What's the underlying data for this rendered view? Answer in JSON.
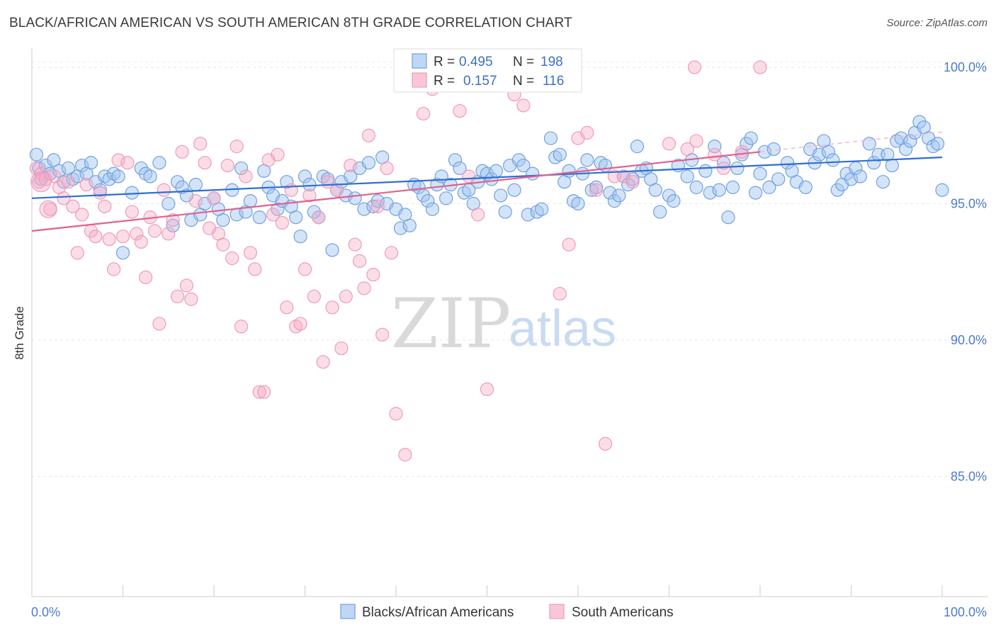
{
  "title": "BLACK/AFRICAN AMERICAN VS SOUTH AMERICAN 8TH GRADE CORRELATION CHART",
  "source": "Source: ZipAtlas.com",
  "watermark": {
    "zip": "ZIP",
    "atlas": "atlas"
  },
  "chart_data": {
    "type": "scatter",
    "ylabel": "8th Grade",
    "x_tick_labels": [
      "0.0%",
      "100.0%"
    ],
    "y_tick_labels": [
      {
        "value": 100,
        "label": "100.0%"
      },
      {
        "value": 95,
        "label": "95.0%"
      },
      {
        "value": 90,
        "label": "90.0%"
      },
      {
        "value": 85,
        "label": "85.0%"
      }
    ],
    "xlim": [
      0,
      100
    ],
    "ylim": [
      80.6,
      100.7
    ],
    "grid": true,
    "legend_position": "bottom-center",
    "stats_box": [
      {
        "r_label": "R =",
        "r_value": "0.495",
        "n_label": "N =",
        "n_value": "198"
      },
      {
        "r_label": "R =",
        "r_value": "0.157",
        "n_label": "N =",
        "n_value": "116"
      }
    ],
    "series": [
      {
        "name": "Blacks/African Americans",
        "color": "#6fa0e0",
        "line_color": "#2f6fd0",
        "trend": {
          "x0": 0,
          "y0": 95.2,
          "x1": 100,
          "y1": 96.7
        },
        "points": [
          [
            0.5,
            96.8
          ],
          [
            0.8,
            96.3
          ],
          [
            1,
            95.9
          ],
          [
            1.5,
            96.4
          ],
          [
            2,
            96.1
          ],
          [
            2.4,
            96.6
          ],
          [
            3,
            96.2
          ],
          [
            3.5,
            95.8
          ],
          [
            4,
            96.3
          ],
          [
            4.5,
            95.9
          ],
          [
            5,
            96.0
          ],
          [
            5.5,
            96.4
          ],
          [
            6,
            96.1
          ],
          [
            6.5,
            96.5
          ],
          [
            7,
            95.8
          ],
          [
            7.5,
            95.5
          ],
          [
            8,
            96.0
          ],
          [
            8.5,
            95.9
          ],
          [
            9,
            96.1
          ],
          [
            9.5,
            96.0
          ],
          [
            10,
            93.2
          ],
          [
            11,
            95.4
          ],
          [
            12,
            96.3
          ],
          [
            12.5,
            96.1
          ],
          [
            13,
            96.0
          ],
          [
            14,
            96.5
          ],
          [
            15,
            95.0
          ],
          [
            15.5,
            94.2
          ],
          [
            16,
            95.8
          ],
          [
            16.5,
            95.6
          ],
          [
            17,
            95.3
          ],
          [
            17.5,
            94.4
          ],
          [
            18,
            95.7
          ],
          [
            18.5,
            94.6
          ],
          [
            19,
            95.0
          ],
          [
            20,
            95.2
          ],
          [
            20.5,
            94.8
          ],
          [
            21,
            94.4
          ],
          [
            22,
            95.5
          ],
          [
            22.5,
            94.6
          ],
          [
            23,
            96.3
          ],
          [
            23.5,
            94.7
          ],
          [
            24,
            95.1
          ],
          [
            25,
            94.5
          ],
          [
            25.5,
            96.2
          ],
          [
            26,
            95.6
          ],
          [
            26.5,
            95.3
          ],
          [
            27,
            94.8
          ],
          [
            27.5,
            95.1
          ],
          [
            28,
            95.8
          ],
          [
            28.5,
            94.9
          ],
          [
            29,
            94.5
          ],
          [
            29.5,
            93.8
          ],
          [
            30,
            96.0
          ],
          [
            30.5,
            95.7
          ],
          [
            31,
            94.7
          ],
          [
            31.5,
            94.5
          ],
          [
            32,
            96.0
          ],
          [
            32.5,
            95.9
          ],
          [
            33,
            93.3
          ],
          [
            33.5,
            95.5
          ],
          [
            34,
            95.8
          ],
          [
            34.5,
            95.3
          ],
          [
            35,
            96.0
          ],
          [
            35.5,
            95.2
          ],
          [
            36,
            96.3
          ],
          [
            36.5,
            94.8
          ],
          [
            37,
            96.5
          ],
          [
            37.5,
            94.9
          ],
          [
            38,
            95.1
          ],
          [
            38.5,
            96.7
          ],
          [
            39,
            95.0
          ],
          [
            40,
            94.8
          ],
          [
            40.5,
            94.1
          ],
          [
            41,
            94.6
          ],
          [
            41.5,
            94.2
          ],
          [
            42,
            95.7
          ],
          [
            42.5,
            95.6
          ],
          [
            43,
            95.3
          ],
          [
            43.5,
            95.1
          ],
          [
            44,
            94.8
          ],
          [
            44.5,
            95.7
          ],
          [
            45,
            96.0
          ],
          [
            45.5,
            95.2
          ],
          [
            46,
            95.7
          ],
          [
            46.5,
            96.6
          ],
          [
            47,
            96.3
          ],
          [
            47.5,
            95.4
          ],
          [
            48,
            95.5
          ],
          [
            48.5,
            95.0
          ],
          [
            49,
            95.8
          ],
          [
            49.5,
            96.2
          ],
          [
            50,
            96.1
          ],
          [
            50.5,
            95.9
          ],
          [
            51,
            96.2
          ],
          [
            51.5,
            95.3
          ],
          [
            52,
            94.7
          ],
          [
            52.5,
            96.4
          ],
          [
            53,
            95.5
          ],
          [
            53.5,
            96.6
          ],
          [
            54,
            96.4
          ],
          [
            54.5,
            94.6
          ],
          [
            55,
            96.1
          ],
          [
            55.5,
            94.7
          ],
          [
            56,
            94.8
          ],
          [
            57,
            97.4
          ],
          [
            57.5,
            96.7
          ],
          [
            58,
            96.8
          ],
          [
            58.5,
            95.8
          ],
          [
            59,
            96.2
          ],
          [
            59.5,
            95.1
          ],
          [
            60,
            95.0
          ],
          [
            60.5,
            96.1
          ],
          [
            61,
            96.6
          ],
          [
            61.5,
            95.5
          ],
          [
            62,
            95.6
          ],
          [
            62.5,
            96.5
          ],
          [
            63,
            96.4
          ],
          [
            63.5,
            95.4
          ],
          [
            64,
            95.1
          ],
          [
            64.5,
            95.3
          ],
          [
            65,
            96.0
          ],
          [
            65.5,
            95.7
          ],
          [
            66,
            95.9
          ],
          [
            66.5,
            97.1
          ],
          [
            67,
            96.2
          ],
          [
            67.5,
            96.3
          ],
          [
            68,
            95.9
          ],
          [
            68.5,
            95.5
          ],
          [
            69,
            94.7
          ],
          [
            70,
            95.3
          ],
          [
            70.5,
            95.1
          ],
          [
            71,
            96.4
          ],
          [
            72,
            96.0
          ],
          [
            72.5,
            96.6
          ],
          [
            73,
            95.6
          ],
          [
            74,
            96.2
          ],
          [
            74.5,
            95.4
          ],
          [
            75,
            97.1
          ],
          [
            75.5,
            95.5
          ],
          [
            76,
            96.5
          ],
          [
            76.5,
            94.5
          ],
          [
            77,
            95.6
          ],
          [
            77.5,
            96.3
          ],
          [
            78,
            96.8
          ],
          [
            78.5,
            97.2
          ],
          [
            79,
            97.4
          ],
          [
            79.5,
            95.4
          ],
          [
            80,
            96.1
          ],
          [
            80.5,
            96.9
          ],
          [
            81,
            95.6
          ],
          [
            81.5,
            97.0
          ],
          [
            82,
            95.9
          ],
          [
            83,
            96.5
          ],
          [
            83.5,
            96.2
          ],
          [
            84,
            95.8
          ],
          [
            85,
            95.6
          ],
          [
            85.5,
            97.0
          ],
          [
            86,
            96.5
          ],
          [
            86.5,
            96.8
          ],
          [
            87,
            97.3
          ],
          [
            87.5,
            96.9
          ],
          [
            88,
            96.6
          ],
          [
            88.5,
            95.5
          ],
          [
            89,
            95.7
          ],
          [
            89.5,
            96.1
          ],
          [
            90,
            95.9
          ],
          [
            90.5,
            96.3
          ],
          [
            91,
            96.0
          ],
          [
            92,
            97.2
          ],
          [
            92.5,
            96.5
          ],
          [
            93,
            96.8
          ],
          [
            93.5,
            95.8
          ],
          [
            94,
            96.8
          ],
          [
            94.5,
            96.4
          ],
          [
            95,
            97.3
          ],
          [
            95.5,
            97.4
          ],
          [
            96,
            97.0
          ],
          [
            96.5,
            97.3
          ],
          [
            97,
            97.6
          ],
          [
            97.5,
            98.0
          ],
          [
            98,
            97.8
          ],
          [
            98.5,
            97.4
          ],
          [
            99,
            97.1
          ],
          [
            99.5,
            97.2
          ],
          [
            100,
            95.5
          ]
        ]
      },
      {
        "name": "South Americans",
        "color": "#f09ab8",
        "line_color": "#e0608f",
        "trend": {
          "x0": 0,
          "y0": 94.0,
          "x1": 80,
          "y1": 96.9
        },
        "points": [
          [
            0.5,
            96.3
          ],
          [
            0.8,
            95.8
          ],
          [
            1,
            96.1
          ],
          [
            1.5,
            95.9
          ],
          [
            2,
            94.8
          ],
          [
            2.5,
            96.0
          ],
          [
            3,
            95.6
          ],
          [
            3.5,
            95.2
          ],
          [
            4,
            95.8
          ],
          [
            4.5,
            94.9
          ],
          [
            5,
            93.2
          ],
          [
            5.5,
            94.6
          ],
          [
            6,
            95.7
          ],
          [
            6.5,
            94.0
          ],
          [
            7,
            93.8
          ],
          [
            7.5,
            95.4
          ],
          [
            8,
            94.9
          ],
          [
            8.5,
            93.7
          ],
          [
            9,
            92.6
          ],
          [
            9.5,
            96.6
          ],
          [
            10,
            93.8
          ],
          [
            10.5,
            96.5
          ],
          [
            11,
            94.7
          ],
          [
            11.5,
            93.9
          ],
          [
            12,
            93.6
          ],
          [
            12.5,
            92.3
          ],
          [
            13,
            94.5
          ],
          [
            13.5,
            94.0
          ],
          [
            14,
            90.6
          ],
          [
            14.5,
            95.5
          ],
          [
            15,
            93.9
          ],
          [
            15.5,
            94.4
          ],
          [
            16,
            91.6
          ],
          [
            16.5,
            96.9
          ],
          [
            17,
            92.0
          ],
          [
            17.5,
            91.5
          ],
          [
            18,
            95.1
          ],
          [
            18.5,
            97.2
          ],
          [
            19,
            96.5
          ],
          [
            19.5,
            94.1
          ],
          [
            20,
            95.2
          ],
          [
            20.5,
            93.9
          ],
          [
            21,
            93.5
          ],
          [
            21.5,
            96.4
          ],
          [
            22,
            93.0
          ],
          [
            22.5,
            97.1
          ],
          [
            23,
            90.5
          ],
          [
            23.5,
            96.0
          ],
          [
            24,
            93.2
          ],
          [
            24.5,
            92.6
          ],
          [
            25,
            88.1
          ],
          [
            25.5,
            88.1
          ],
          [
            26,
            96.6
          ],
          [
            26.5,
            94.6
          ],
          [
            27,
            96.8
          ],
          [
            27.5,
            94.3
          ],
          [
            28,
            91.2
          ],
          [
            28.5,
            95.5
          ],
          [
            29,
            90.5
          ],
          [
            29.5,
            90.6
          ],
          [
            30,
            92.6
          ],
          [
            30.5,
            95.3
          ],
          [
            31,
            91.6
          ],
          [
            31.5,
            94.5
          ],
          [
            32,
            89.2
          ],
          [
            32.5,
            95.8
          ],
          [
            33,
            91.2
          ],
          [
            33.5,
            95.5
          ],
          [
            34,
            89.7
          ],
          [
            34.5,
            91.6
          ],
          [
            35,
            96.4
          ],
          [
            35.5,
            93.5
          ],
          [
            36,
            92.9
          ],
          [
            36.5,
            91.9
          ],
          [
            37,
            97.5
          ],
          [
            37.5,
            92.4
          ],
          [
            38,
            94.9
          ],
          [
            38.5,
            90.2
          ],
          [
            39,
            96.3
          ],
          [
            39.5,
            93.2
          ],
          [
            40,
            87.3
          ],
          [
            41,
            85.8
          ],
          [
            42,
            100.0
          ],
          [
            43,
            98.3
          ],
          [
            44,
            99.2
          ],
          [
            45,
            100.0
          ],
          [
            46,
            99.7
          ],
          [
            47,
            98.4
          ],
          [
            48,
            96.0
          ],
          [
            49,
            94.6
          ],
          [
            50,
            88.2
          ],
          [
            51,
            99.5
          ],
          [
            52,
            100.0
          ],
          [
            53,
            99.0
          ],
          [
            54,
            98.6
          ],
          [
            55,
            99.6
          ],
          [
            56,
            100.0
          ],
          [
            57,
            100.0
          ],
          [
            58,
            91.7
          ],
          [
            59,
            93.5
          ],
          [
            60,
            97.4
          ],
          [
            61,
            97.6
          ],
          [
            62,
            95.5
          ],
          [
            63,
            86.2
          ],
          [
            64,
            96.0
          ],
          [
            65,
            96.0
          ],
          [
            66,
            95.8
          ],
          [
            70,
            97.2
          ],
          [
            72,
            97.0
          ],
          [
            73,
            97.3
          ],
          [
            75,
            96.8
          ],
          [
            76,
            96.3
          ],
          [
            78,
            96.9
          ],
          [
            80,
            100.0
          ],
          [
            72.8,
            100.0
          ]
        ]
      }
    ]
  }
}
